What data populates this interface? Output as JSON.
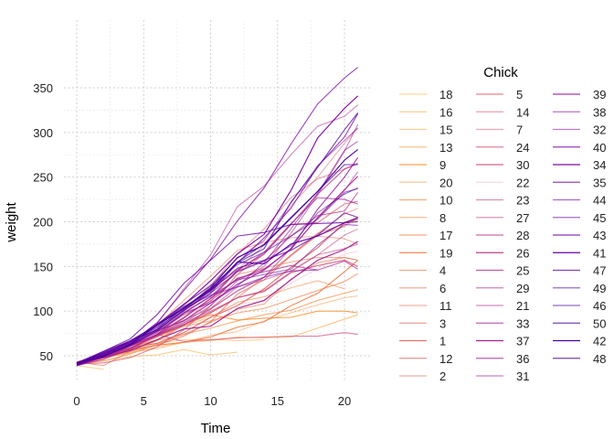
{
  "chart_data": {
    "type": "line",
    "title": "",
    "xlabel": "Time",
    "ylabel": "weight",
    "xlim": [
      -0.5,
      21.5
    ],
    "ylim": [
      20,
      385
    ],
    "xticks": [
      0,
      5,
      10,
      15,
      20
    ],
    "yticks": [
      50,
      100,
      150,
      200,
      250,
      300,
      350
    ],
    "grid": true,
    "legend": {
      "title": "Chick",
      "placement": "right",
      "columns": 3
    },
    "times": [
      0,
      2,
      4,
      6,
      8,
      10,
      12,
      14,
      16,
      18,
      20,
      21
    ],
    "palette": "plasma",
    "series": [
      {
        "name": "18",
        "alpha": 0.5,
        "values": [
          39,
          35
        ]
      },
      {
        "name": "16",
        "alpha": 0.55,
        "values": [
          41,
          45,
          49,
          51,
          57,
          51,
          54
        ]
      },
      {
        "name": "15",
        "alpha": 0.5,
        "values": [
          41,
          49,
          56,
          64,
          68,
          68,
          67,
          68
        ]
      },
      {
        "name": "13",
        "alpha": 0.6,
        "values": [
          41,
          48,
          53,
          60,
          65,
          67,
          71,
          70,
          71,
          81,
          91,
          96
        ]
      },
      {
        "name": "9",
        "alpha": 0.9,
        "values": [
          42,
          51,
          59,
          68,
          85,
          96,
          90,
          92,
          93,
          100,
          100,
          98
        ]
      },
      {
        "name": "20",
        "alpha": 0.5,
        "values": [
          41,
          47,
          54,
          58,
          65,
          73,
          77,
          89,
          98,
          107,
          115,
          117
        ]
      },
      {
        "name": "10",
        "alpha": 0.7,
        "values": [
          41,
          44,
          52,
          63,
          74,
          81,
          89,
          96,
          101,
          112,
          120,
          124
        ]
      },
      {
        "name": "8",
        "alpha": 0.6,
        "values": [
          42,
          50,
          61,
          71,
          84,
          93,
          110,
          116,
          126,
          134,
          125
        ]
      },
      {
        "name": "17",
        "alpha": 0.7,
        "values": [
          42,
          51,
          61,
          72,
          83,
          89,
          98,
          103,
          113,
          123,
          133,
          142
        ]
      },
      {
        "name": "19",
        "alpha": 0.95,
        "values": [
          43,
          48,
          55,
          62,
          65,
          71,
          82,
          88,
          106,
          120,
          144,
          157
        ]
      },
      {
        "name": "4",
        "alpha": 0.65,
        "values": [
          42,
          49,
          56,
          67,
          74,
          87,
          102,
          108,
          136,
          154,
          160,
          157
        ]
      },
      {
        "name": "6",
        "alpha": 0.6,
        "values": [
          41,
          49,
          59,
          74,
          97,
          124,
          141,
          148,
          155,
          160,
          160,
          157
        ]
      },
      {
        "name": "11",
        "alpha": 0.55,
        "values": [
          43,
          51,
          63,
          84,
          112,
          139,
          168,
          177,
          182,
          184,
          181,
          175
        ]
      },
      {
        "name": "3",
        "alpha": 0.65,
        "values": [
          43,
          39,
          55,
          67,
          84,
          99,
          115,
          138,
          163,
          187,
          198,
          202
        ]
      },
      {
        "name": "1",
        "alpha": 0.95,
        "values": [
          42,
          51,
          59,
          64,
          76,
          93,
          106,
          125,
          149,
          171,
          199,
          205
        ]
      },
      {
        "name": "12",
        "alpha": 0.7,
        "values": [
          41,
          49,
          56,
          62,
          72,
          88,
          119,
          135,
          162,
          185,
          195,
          205
        ]
      },
      {
        "name": "2",
        "alpha": 0.5,
        "values": [
          40,
          49,
          58,
          72,
          84,
          103,
          122,
          138,
          162,
          187,
          209,
          215
        ]
      },
      {
        "name": "5",
        "alpha": 0.75,
        "values": [
          41,
          42,
          48,
          60,
          79,
          106,
          141,
          164,
          197,
          199,
          220,
          223
        ]
      },
      {
        "name": "14",
        "alpha": 0.55,
        "values": [
          41,
          49,
          62,
          79,
          101,
          128,
          164,
          192,
          227,
          248,
          259,
          266
        ]
      },
      {
        "name": "7",
        "alpha": 0.5,
        "values": [
          41,
          49,
          57,
          71,
          89,
          112,
          146,
          174,
          218,
          250,
          288,
          305
        ]
      },
      {
        "name": "24",
        "alpha": 0.7,
        "values": [
          42,
          52,
          58,
          74,
          66,
          68,
          70,
          71,
          72,
          72,
          76,
          74
        ]
      },
      {
        "name": "30",
        "alpha": 0.85,
        "values": [
          42,
          48,
          59,
          72,
          85,
          98,
          115,
          122,
          143,
          151,
          157,
          150
        ]
      },
      {
        "name": "22",
        "alpha": 0.2,
        "values": [
          41,
          55,
          64,
          77,
          90,
          95,
          108,
          111,
          131,
          148,
          164,
          167
        ]
      },
      {
        "name": "23",
        "alpha": 0.6,
        "values": [
          43,
          52,
          61,
          73,
          90,
          103,
          127,
          135,
          145,
          163,
          170,
          175
        ]
      },
      {
        "name": "27",
        "alpha": 0.55,
        "values": [
          39,
          46,
          58,
          73,
          87,
          100,
          115,
          123,
          144,
          163,
          185,
          192
        ]
      },
      {
        "name": "28",
        "alpha": 0.75,
        "values": [
          39,
          46,
          58,
          73,
          92,
          114,
          145,
          156,
          184,
          207,
          212,
          233
        ]
      },
      {
        "name": "26",
        "alpha": 0.95,
        "values": [
          42,
          48,
          57,
          74,
          93,
          114,
          136,
          147,
          169,
          205,
          236,
          251
        ]
      },
      {
        "name": "25",
        "alpha": 0.8,
        "values": [
          40,
          49,
          62,
          78,
          102,
          124,
          146,
          164,
          197,
          231,
          259,
          265
        ]
      },
      {
        "name": "29",
        "alpha": 0.6,
        "values": [
          39,
          48,
          59,
          74,
          87,
          106,
          134,
          150,
          187,
          230,
          279,
          309
        ]
      },
      {
        "name": "21",
        "alpha": 0.55,
        "values": [
          40,
          50,
          62,
          86,
          125,
          163,
          217,
          240,
          275,
          307,
          318,
          331
        ]
      },
      {
        "name": "33",
        "alpha": 0.7,
        "values": [
          39,
          50,
          63,
          77,
          96,
          111,
          137,
          144,
          151,
          146,
          156,
          147
        ]
      },
      {
        "name": "37",
        "alpha": 1.0,
        "values": [
          41,
          48,
          56,
          68,
          80,
          83,
          103,
          112,
          135,
          157,
          169,
          178
        ]
      },
      {
        "name": "36",
        "alpha": 0.7,
        "values": [
          39,
          48,
          61,
          76,
          98,
          116,
          145,
          166,
          198,
          227,
          225,
          220
        ]
      },
      {
        "name": "31",
        "alpha": 0.55,
        "values": [
          42,
          53,
          62,
          73,
          85,
          102,
          123,
          138,
          170,
          204,
          235,
          256
        ]
      },
      {
        "name": "39",
        "alpha": 0.85,
        "values": [
          42,
          50,
          61,
          78,
          89,
          109,
          130,
          146,
          170,
          214,
          250,
          272
        ]
      },
      {
        "name": "38",
        "alpha": 0.6,
        "values": [
          41,
          49,
          61,
          74,
          98,
          109,
          128,
          154,
          192,
          232,
          280,
          290
        ]
      },
      {
        "name": "32",
        "alpha": 0.55,
        "values": [
          41,
          49,
          65,
          82,
          107,
          129,
          159,
          179,
          221,
          263,
          291,
          305
        ]
      },
      {
        "name": "40",
        "alpha": 0.8,
        "values": [
          41,
          55,
          66,
          79,
          101,
          120,
          154,
          182,
          215,
          262,
          295,
          321
        ]
      },
      {
        "name": "34",
        "alpha": 1.0,
        "values": [
          41,
          49,
          63,
          85,
          107,
          134,
          164,
          186,
          235,
          294,
          327,
          341
        ]
      },
      {
        "name": "35",
        "alpha": 0.75,
        "values": [
          41,
          53,
          64,
          87,
          123,
          158,
          201,
          238,
          287,
          332,
          361,
          373
        ]
      },
      {
        "name": "44",
        "alpha": 0.6,
        "values": [
          42,
          51,
          65,
          86,
          103,
          118,
          127,
          138,
          145,
          146
        ]
      },
      {
        "name": "45",
        "alpha": 0.6,
        "values": [
          41,
          50,
          61,
          78,
          98,
          117,
          135,
          141,
          147,
          174,
          197,
          196
        ]
      },
      {
        "name": "43",
        "alpha": 0.8,
        "values": [
          42,
          55,
          69,
          96,
          131,
          157,
          184,
          188,
          197,
          198,
          199,
          200
        ]
      },
      {
        "name": "41",
        "alpha": 1.0,
        "values": [
          42,
          51,
          66,
          85,
          103,
          124,
          155,
          153,
          175,
          184,
          199,
          204
        ]
      },
      {
        "name": "47",
        "alpha": 0.75,
        "values": [
          41,
          53,
          66,
          79,
          100,
          123,
          148,
          157,
          168,
          185,
          210,
          205
        ]
      },
      {
        "name": "49",
        "alpha": 0.6,
        "values": [
          40,
          53,
          64,
          85,
          108,
          128,
          152,
          166,
          184,
          203,
          233,
          237
        ]
      },
      {
        "name": "46",
        "alpha": 0.6,
        "values": [
          40,
          52,
          62,
          82,
          101,
          120,
          144,
          156,
          173,
          210,
          231,
          238
        ]
      },
      {
        "name": "50",
        "alpha": 0.75,
        "values": [
          41,
          54,
          67,
          84,
          105,
          122,
          155,
          175,
          205,
          234,
          264,
          264
        ]
      },
      {
        "name": "42",
        "alpha": 1.0,
        "values": [
          42,
          49,
          63,
          84,
          103,
          126,
          160,
          174,
          204,
          234,
          269,
          281
        ]
      },
      {
        "name": "48",
        "alpha": 0.75,
        "values": [
          39,
          50,
          62,
          80,
          104,
          125,
          154,
          170,
          222,
          261,
          303,
          322
        ]
      }
    ]
  }
}
